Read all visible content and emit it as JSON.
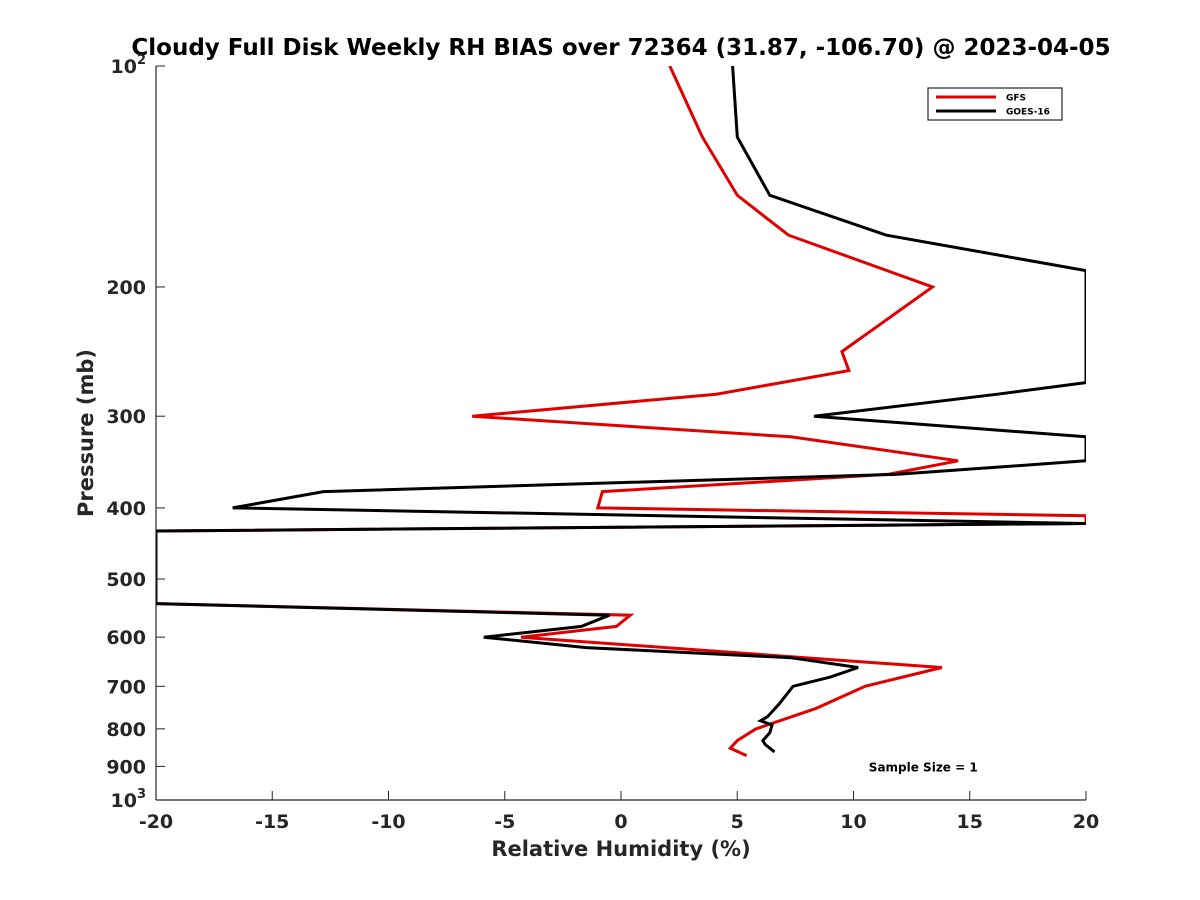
{
  "chart_data": {
    "type": "line",
    "title": "Cloudy Full Disk Weekly RH BIAS over 72364 (31.87, -106.70) @ 2023-04-05",
    "xlabel": "Relative Humidity (%)",
    "ylabel": "Pressure (mb)",
    "xlim": [
      -20,
      20
    ],
    "ylim": [
      100,
      1000
    ],
    "y_scale": "log",
    "y_reversed": true,
    "grid": false,
    "legend_position": "top-right",
    "x_ticks": [
      -20,
      -15,
      -10,
      -5,
      0,
      5,
      10,
      15,
      20
    ],
    "x_tick_labels": [
      "-20",
      "-15",
      "-10",
      "-5",
      "0",
      "5",
      "10",
      "15",
      "20"
    ],
    "y_ticks": [
      100,
      200,
      300,
      400,
      500,
      600,
      700,
      800,
      900,
      1000
    ],
    "y_tick_labels": [
      {
        "base": "10",
        "exp": "2"
      },
      {
        "base": "200"
      },
      {
        "base": "300"
      },
      {
        "base": "400"
      },
      {
        "base": "500"
      },
      {
        "base": "600"
      },
      {
        "base": "700"
      },
      {
        "base": "800"
      },
      {
        "base": "900"
      },
      {
        "base": "10",
        "exp": "3"
      }
    ],
    "series": [
      {
        "name": "GFS",
        "color": "#e00000",
        "points": [
          [
            2.1,
            100
          ],
          [
            3.5,
            125
          ],
          [
            5.0,
            150
          ],
          [
            7.2,
            170
          ],
          [
            13.4,
            200
          ],
          [
            9.5,
            245
          ],
          [
            9.8,
            260
          ],
          [
            4.1,
            280
          ],
          [
            -6.4,
            300
          ],
          [
            7.3,
            320
          ],
          [
            14.5,
            345
          ],
          [
            11.5,
            360
          ],
          [
            -0.8,
            380
          ],
          [
            -1.0,
            400
          ],
          [
            20.0,
            410
          ],
          [
            20.0,
            420
          ],
          [
            -20.0,
            430
          ],
          [
            -20.0,
            540
          ],
          [
            0.4,
            560
          ],
          [
            -0.2,
            580
          ],
          [
            -4.3,
            600
          ],
          [
            10.9,
            650
          ],
          [
            13.8,
            660
          ],
          [
            10.5,
            700
          ],
          [
            8.4,
            750
          ],
          [
            5.8,
            800
          ],
          [
            5.0,
            830
          ],
          [
            4.7,
            850
          ],
          [
            5.4,
            870
          ]
        ]
      },
      {
        "name": "GOES-16",
        "color": "#000000",
        "points": [
          [
            4.8,
            100
          ],
          [
            5.0,
            125
          ],
          [
            6.4,
            150
          ],
          [
            11.4,
            170
          ],
          [
            20.0,
            190
          ],
          [
            20.0,
            270
          ],
          [
            16.2,
            280
          ],
          [
            8.3,
            300
          ],
          [
            20.0,
            320
          ],
          [
            20.0,
            345
          ],
          [
            11.9,
            360
          ],
          [
            -12.8,
            380
          ],
          [
            -16.7,
            400
          ],
          [
            20.0,
            420
          ],
          [
            -20.0,
            430
          ],
          [
            -20.0,
            540
          ],
          [
            -0.5,
            560
          ],
          [
            -1.7,
            580
          ],
          [
            -5.9,
            600
          ],
          [
            -1.5,
            620
          ],
          [
            7.3,
            640
          ],
          [
            10.2,
            660
          ],
          [
            9.0,
            680
          ],
          [
            7.4,
            700
          ],
          [
            6.8,
            740
          ],
          [
            6.3,
            770
          ],
          [
            6.0,
            780
          ],
          [
            6.5,
            790
          ],
          [
            6.4,
            810
          ],
          [
            6.1,
            830
          ],
          [
            6.2,
            840
          ],
          [
            6.6,
            860
          ]
        ]
      }
    ],
    "annotations": [
      {
        "text": "Sample Size = 1",
        "x": 13.0,
        "y": 900
      }
    ]
  }
}
